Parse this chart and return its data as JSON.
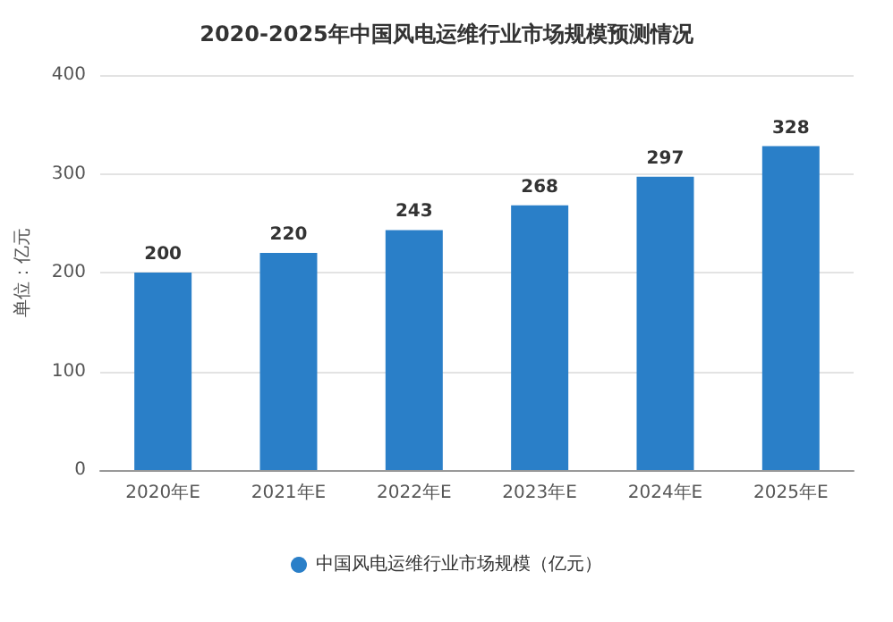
{
  "chart_data": {
    "type": "bar",
    "title": "2020-2025年中国风电运维行业市场规模预测情况",
    "ylabel": "单位：亿元",
    "categories": [
      "2020年E",
      "2021年E",
      "2022年E",
      "2023年E",
      "2024年E",
      "2025年E"
    ],
    "series": [
      {
        "name": "中国风电运维行业市场规模（亿元）",
        "color": "#2a7fc8",
        "values": [
          200,
          220,
          243,
          268,
          297,
          328
        ]
      }
    ],
    "ylim": [
      0,
      400
    ],
    "yticks": [
      0,
      100,
      200,
      300,
      400
    ],
    "grid": "y",
    "legend": "bottom",
    "data_labels": true
  }
}
